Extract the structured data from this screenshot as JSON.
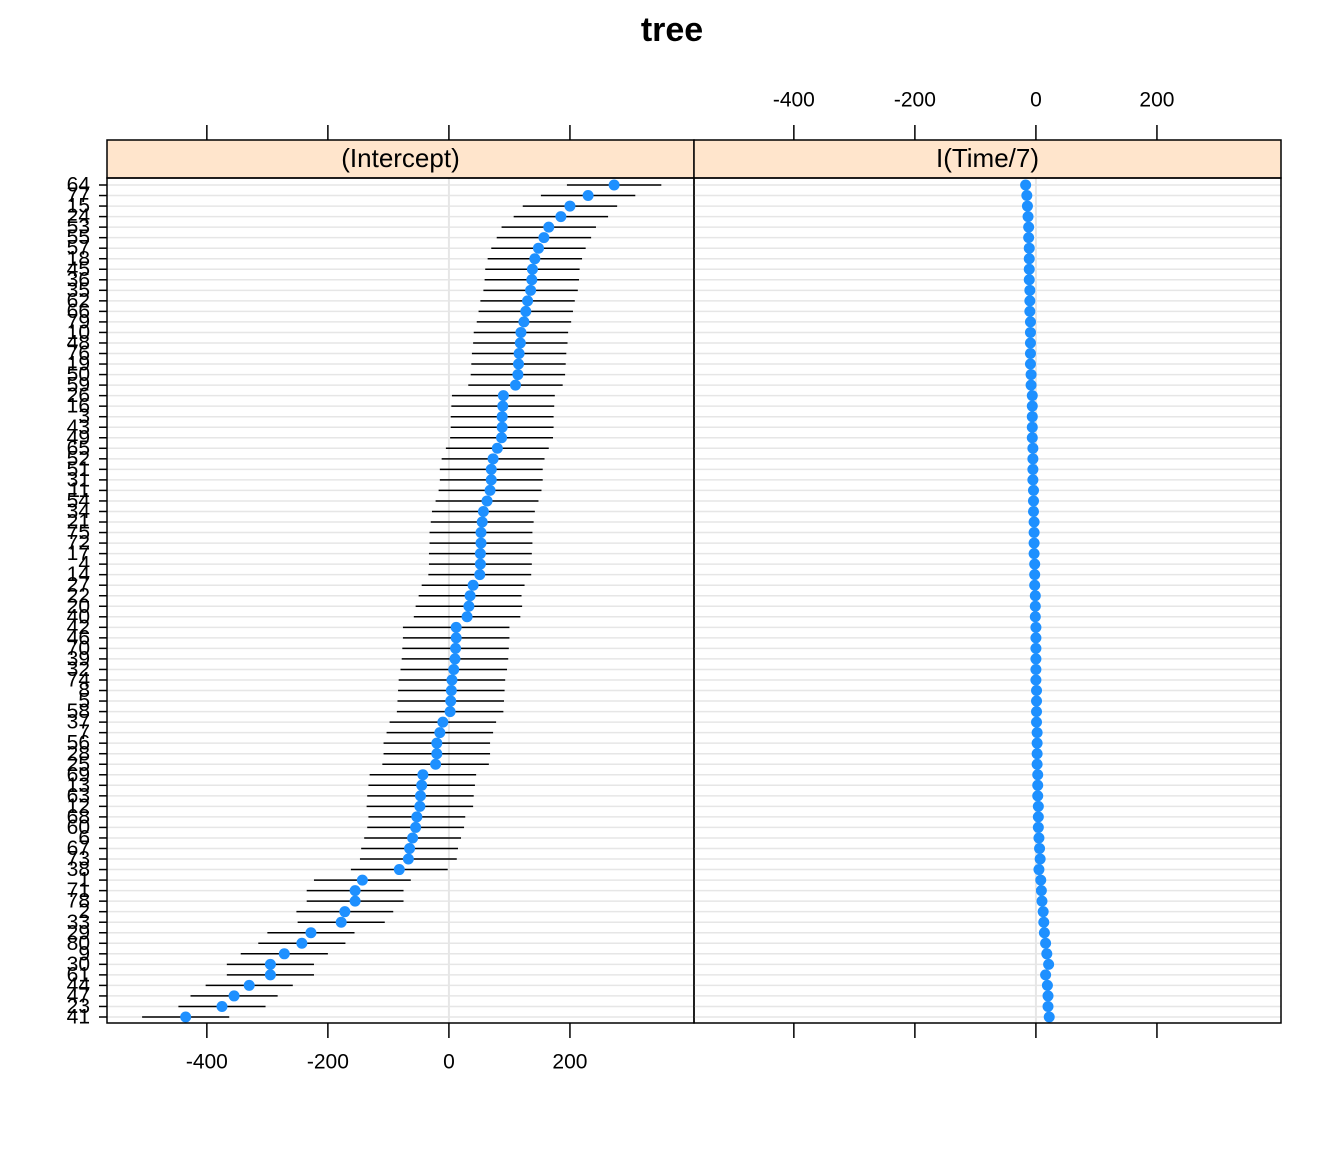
{
  "chart_data": {
    "type": "dotplot",
    "title": "tree",
    "categories": [
      "64",
      "77",
      "15",
      "24",
      "53",
      "55",
      "57",
      "18",
      "45",
      "36",
      "35",
      "62",
      "66",
      "79",
      "10",
      "48",
      "76",
      "19",
      "50",
      "59",
      "26",
      "16",
      "3",
      "43",
      "49",
      "65",
      "52",
      "51",
      "31",
      "11",
      "54",
      "34",
      "21",
      "75",
      "72",
      "17",
      "4",
      "14",
      "27",
      "22",
      "20",
      "40",
      "42",
      "46",
      "70",
      "39",
      "32",
      "74",
      "8",
      "5",
      "58",
      "37",
      "7",
      "56",
      "28",
      "25",
      "69",
      "13",
      "63",
      "12",
      "68",
      "60",
      "6",
      "67",
      "73",
      "38",
      "1",
      "71",
      "78",
      "2",
      "33",
      "29",
      "80",
      "9",
      "30",
      "61",
      "44",
      "47",
      "23",
      "41"
    ],
    "xlim": [
      -565,
      405
    ],
    "xticks": [
      -400,
      -200,
      0,
      200
    ],
    "color": "#1e90ff",
    "grid": true,
    "panels": [
      {
        "strip": "(Intercept)",
        "values": [
          273,
          230,
          200,
          185,
          165,
          157,
          148,
          142,
          138,
          137,
          135,
          130,
          127,
          124,
          119,
          118,
          116,
          115,
          114,
          110,
          90,
          89,
          88,
          88,
          87,
          80,
          73,
          70,
          70,
          68,
          63,
          57,
          55,
          53,
          53,
          52,
          52,
          51,
          40,
          35,
          33,
          30,
          12,
          12,
          11,
          10,
          8,
          5,
          4,
          3,
          2,
          -10,
          -15,
          -20,
          -20,
          -22,
          -43,
          -45,
          -47,
          -48,
          -53,
          -55,
          -60,
          -65,
          -67,
          -82,
          -143,
          -155,
          -155,
          -172,
          -178,
          -228,
          -243,
          -272,
          -295,
          -295,
          -330,
          -355,
          -375,
          -435
        ],
        "errors": [
          78,
          78,
          78,
          78,
          78,
          78,
          78,
          78,
          78,
          78,
          78,
          78,
          78,
          78,
          78,
          78,
          78,
          78,
          78,
          78,
          85,
          85,
          85,
          85,
          85,
          85,
          85,
          85,
          85,
          85,
          85,
          85,
          85,
          85,
          85,
          85,
          85,
          85,
          85,
          85,
          88,
          88,
          88,
          88,
          88,
          88,
          88,
          88,
          88,
          88,
          88,
          88,
          88,
          88,
          88,
          88,
          88,
          88,
          88,
          88,
          80,
          80,
          80,
          80,
          80,
          80,
          80,
          80,
          80,
          80,
          72,
          72,
          72,
          72,
          72,
          72,
          72,
          72,
          72,
          72
        ]
      },
      {
        "strip": "I(Time/7)",
        "values": [
          -17,
          -15,
          -14,
          -13,
          -12,
          -12,
          -11,
          -11,
          -11,
          -11,
          -10,
          -10,
          -10,
          -9,
          -9,
          -9,
          -9,
          -9,
          -8,
          -8,
          -6,
          -6,
          -6,
          -6,
          -6,
          -5,
          -5,
          -5,
          -5,
          -4,
          -4,
          -4,
          -3,
          -3,
          -3,
          -3,
          -2,
          -2,
          -2,
          -1,
          -1,
          -1,
          0,
          0,
          0,
          0,
          0,
          0,
          1,
          1,
          1,
          1,
          2,
          2,
          2,
          2,
          3,
          3,
          3,
          4,
          4,
          4,
          5,
          6,
          7,
          5,
          8,
          9,
          10,
          12,
          13,
          14,
          16,
          18,
          21,
          16,
          19,
          20,
          20,
          22
        ]
      }
    ]
  }
}
